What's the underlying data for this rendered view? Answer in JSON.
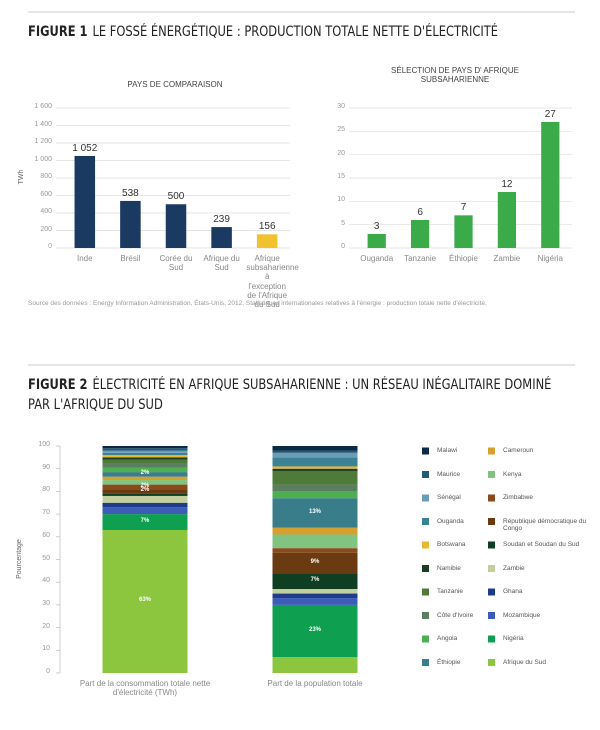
{
  "figure1": {
    "number": "FIGURE 1",
    "title": "LE FOSSÉ ÉNERGÉTIQUE : PRODUCTION TOTALE NETTE D'ÉLECTRICITÉ",
    "source": "Source des données : Energy Information Administration, États-Unis, 2012, Statistiques internationales relatives à l'énergie : production totale nette d'électricité."
  },
  "figure2": {
    "number": "FIGURE 2",
    "title": "ÉLECTRICITÉ EN AFRIQUE SUBSAHARIENNE : UN RÉSEAU INÉGALITAIRE DOMINÉ PAR L'AFRIQUE DU SUD"
  },
  "chart_data": [
    {
      "type": "bar",
      "title": "PAYS DE COMPARAISON",
      "y_label": "TWh",
      "categories": [
        "Inde",
        "Brésil",
        "Corée du Sud",
        "Afrique du Sud",
        "Afrique subsaharienne à l'exception de l'Afrique du Sud"
      ],
      "values": [
        1052,
        538,
        500,
        239,
        156
      ],
      "value_labels": [
        "1 052",
        "538",
        "500",
        "239",
        "156"
      ],
      "colors": [
        "#1b3a62",
        "#1b3a62",
        "#1b3a62",
        "#1b3a62",
        "#f2c12e"
      ],
      "ylim": [
        0,
        1600
      ],
      "yticks": [
        0,
        200,
        400,
        600,
        800,
        {
          "value": 1000,
          "label": "1 000"
        },
        {
          "value": 1200,
          "label": "1 200"
        },
        {
          "value": 1400,
          "label": "1 400"
        },
        {
          "value": 1600,
          "label": "1 600"
        }
      ],
      "grid": true
    },
    {
      "type": "bar",
      "title": "SÉLECTION DE PAYS D' AFRIQUE SUBSAHARIENNE",
      "categories": [
        "Ouganda",
        "Tanzanie",
        "Éthiopie",
        "Zambie",
        "Nigéria"
      ],
      "values": [
        3,
        6,
        7,
        12,
        27
      ],
      "color": "#3bab4a",
      "ylim": [
        0,
        30
      ],
      "yticks": [
        0,
        5,
        10,
        15,
        20,
        25,
        30
      ],
      "grid": true
    },
    {
      "type": "stacked_bar",
      "y_label": "Pourcentage",
      "categories": [
        "Part de la consommation totale nette d'électricité (TWh)",
        "Part de la population totale"
      ],
      "ylim": [
        0,
        100
      ],
      "yticks": [
        0,
        10,
        20,
        30,
        40,
        50,
        60,
        70,
        80,
        90,
        100
      ],
      "grid": false,
      "legend": "right",
      "series": [
        {
          "name": "Afrique du Sud",
          "color": "#8cc63f",
          "values": [
            63,
            7
          ],
          "value_labels": [
            "63%",
            null
          ]
        },
        {
          "name": "Nigéria",
          "color": "#0ea050",
          "values": [
            7,
            23
          ],
          "value_labels": [
            "7%",
            "23%"
          ]
        },
        {
          "name": "Mozambique",
          "color": "#3c5cb8",
          "values": [
            3,
            3
          ]
        },
        {
          "name": "Ghana",
          "color": "#1e3c8a",
          "values": [
            2,
            2
          ]
        },
        {
          "name": "Zambie",
          "color": "#c3cf9c",
          "values": [
            3,
            2
          ]
        },
        {
          "name": "Soudan et Soudan du Sud",
          "color": "#0f3f22",
          "values": [
            1,
            7
          ],
          "value_labels": [
            null,
            "7%"
          ]
        },
        {
          "name": "République démocratique du Congo",
          "color": "#6a3a10",
          "values": [
            2,
            9
          ],
          "value_labels": [
            "2%",
            "9%"
          ]
        },
        {
          "name": "Zimbabwe",
          "color": "#8a4a1c",
          "values": [
            2,
            2
          ],
          "value_labels": [
            "2%",
            null
          ]
        },
        {
          "name": "Kenya",
          "color": "#80c480",
          "values": [
            2,
            6
          ]
        },
        {
          "name": "Cameroun",
          "color": "#d4a030",
          "values": [
            1.5,
            3
          ]
        },
        {
          "name": "Éthiopie",
          "color": "#3a7d8a",
          "values": [
            2,
            13
          ],
          "value_labels": [
            "2%",
            "13%"
          ]
        },
        {
          "name": "Angola",
          "color": "#4caf50",
          "values": [
            2,
            3
          ]
        },
        {
          "name": "Côte d'Ivoire",
          "color": "#5b7d60",
          "values": [
            2,
            3
          ]
        },
        {
          "name": "Tanzanie",
          "color": "#4e7a3a",
          "values": [
            1.5,
            6
          ]
        },
        {
          "name": "Namibie",
          "color": "#1a3d23",
          "values": [
            1,
            1
          ]
        },
        {
          "name": "Botswana",
          "color": "#e8b830",
          "values": [
            1,
            1
          ]
        },
        {
          "name": "Ouganda",
          "color": "#3b8296",
          "values": [
            1,
            4
          ]
        },
        {
          "name": "Sénégal",
          "color": "#6a9db5",
          "values": [
            1,
            2
          ]
        },
        {
          "name": "Maurice",
          "color": "#1f5a78",
          "values": [
            1,
            1
          ]
        },
        {
          "name": "Malawi",
          "color": "#0d2a45",
          "values": [
            1,
            2
          ]
        }
      ]
    }
  ]
}
